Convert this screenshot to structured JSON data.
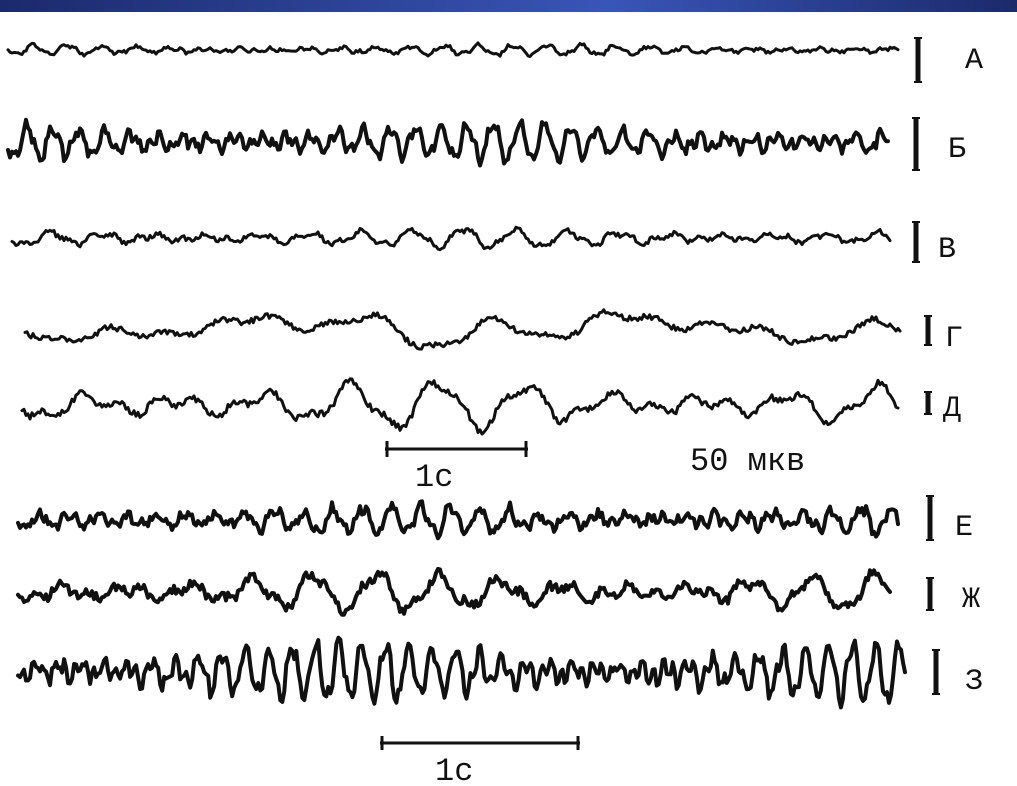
{
  "band_colors": [
    "#1b2a6b",
    "#3a55b8",
    "#1b2a6b"
  ],
  "trace_color": "#111111",
  "traces": [
    {
      "label": "А",
      "amp": 5,
      "freq": 26,
      "noise": 0.6
    },
    {
      "label": "Б",
      "amp": 18,
      "freq": 34,
      "noise": 0.5
    },
    {
      "label": "В",
      "amp": 9,
      "freq": 17,
      "noise": 0.5
    },
    {
      "label": "Г",
      "amp": 14,
      "freq": 7,
      "noise": 0.4
    },
    {
      "label": "Д",
      "amp": 22,
      "freq": 10,
      "noise": 0.3
    },
    {
      "label": "Е",
      "amp": 13,
      "freq": 30,
      "noise": 0.8
    },
    {
      "label": "Ж",
      "amp": 18,
      "freq": 14,
      "noise": 0.5
    },
    {
      "label": "З",
      "amp": 28,
      "freq": 38,
      "noise": 0.4
    }
  ],
  "scale_time_1": "1с",
  "scale_amplitude": "50 мкв",
  "scale_time_2": "1с"
}
